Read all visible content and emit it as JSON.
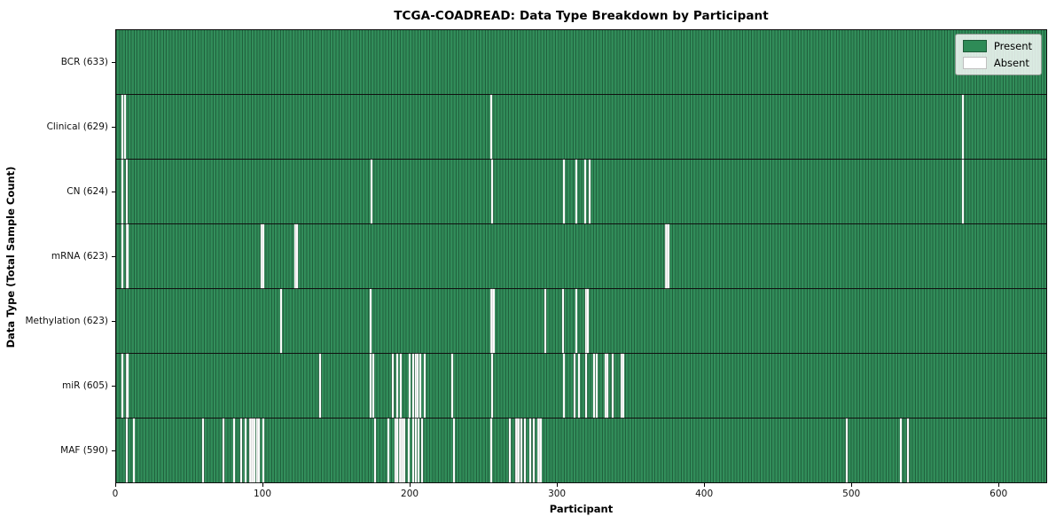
{
  "figure": {
    "title": "TCGA-COADREAD: Data Type Breakdown by Participant",
    "xlabel": "Participant",
    "ylabel": "Data Type (Total Sample Count)"
  },
  "legend": {
    "present_label": "Present",
    "absent_label": "Absent"
  },
  "colors": {
    "present": "#2E8B57",
    "absent": "#FFFFFF",
    "bar_edge": "rgba(0,0,0,0.3)"
  },
  "chart_data": {
    "type": "heatmap",
    "title": "TCGA-COADREAD: Data Type Breakdown by Participant",
    "xlabel": "Participant",
    "ylabel": "Data Type (Total Sample Count)",
    "x_range": [
      0,
      633
    ],
    "x_ticks": [
      0,
      100,
      200,
      300,
      400,
      500,
      600
    ],
    "total_participants": 633,
    "legend_entries": [
      "Present",
      "Absent"
    ],
    "legend_position": "upper right",
    "grid": false,
    "rows": [
      {
        "label": "BCR",
        "count": 633,
        "absent_participants": []
      },
      {
        "label": "Clinical",
        "count": 629,
        "absent_participants": [
          4,
          6,
          255,
          576
        ]
      },
      {
        "label": "CN",
        "count": 624,
        "absent_participants": [
          4,
          7,
          174,
          256,
          305,
          313,
          319,
          322,
          576
        ]
      },
      {
        "label": "mRNA",
        "count": 623,
        "absent_participants": [
          4,
          7,
          8,
          99,
          100,
          122,
          123,
          374,
          375,
          376
        ]
      },
      {
        "label": "Methylation",
        "count": 623,
        "absent_participants": [
          112,
          173,
          255,
          256,
          257,
          292,
          304,
          313,
          320,
          321
        ]
      },
      {
        "label": "miR",
        "count": 605,
        "absent_participants": [
          4,
          7,
          8,
          139,
          173,
          175,
          188,
          191,
          194,
          200,
          202,
          204,
          205,
          207,
          210,
          229,
          256,
          305,
          312,
          315,
          320,
          325,
          327,
          333,
          334,
          338,
          344,
          345
        ]
      },
      {
        "label": "MAF",
        "count": 590,
        "absent_participants": [
          7,
          12,
          59,
          73,
          80,
          85,
          88,
          91,
          92,
          93,
          94,
          96,
          97,
          100,
          176,
          185,
          190,
          191,
          193,
          194,
          195,
          196,
          199,
          202,
          204,
          206,
          208,
          230,
          255,
          268,
          272,
          273,
          274,
          276,
          278,
          282,
          284,
          287,
          288,
          289,
          497,
          534,
          539
        ]
      }
    ]
  }
}
